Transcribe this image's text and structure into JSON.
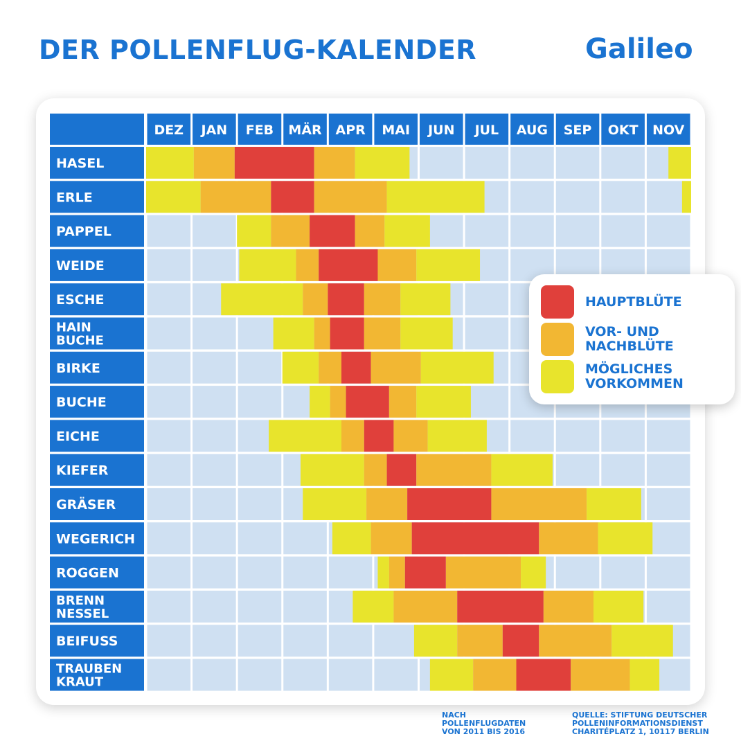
{
  "header": {
    "title": "DER POLLENFLUG-KALENDER",
    "logo": "Galileo"
  },
  "colors": {
    "header_blue": "#1a73d1",
    "grid_bg": "#cfe0f2",
    "hauptbluete": "#e0403b",
    "vor_nachbluete": "#f2b733",
    "moegliches": "#e8e42c"
  },
  "legend": {
    "items": [
      {
        "label": "HAUPTBLÜTE",
        "color": "#e0403b"
      },
      {
        "label": "VOR- UND\nNACHBLÜTE",
        "color": "#f2b733"
      },
      {
        "label": "MÖGLICHES\nVORKOMMEN",
        "color": "#e8e42c"
      }
    ]
  },
  "footer": {
    "left_note": "NACH\nPOLLENFLUGDATEN\nVON 2011 BIS 2016",
    "source": "QUELLE: STIFTUNG DEUTSCHER\nPOLLENINFORMATIONSDIENST\nCHARITÉPLATZ 1, 10117 BERLIN"
  },
  "chart_data": {
    "type": "table",
    "title": "DER POLLENFLUG-KALENDER",
    "months": [
      "DEZ",
      "JAN",
      "FEB",
      "MÄR",
      "APR",
      "MAI",
      "JUN",
      "JUL",
      "AUG",
      "SEP",
      "OKT",
      "NOV"
    ],
    "x_unit": "months from start of December",
    "categories_legend": [
      "HAUPTBLÜTE",
      "VOR- UND NACHBLÜTE",
      "MÖGLICHES VORKOMMEN"
    ],
    "plants": [
      {
        "name": "HASEL",
        "segments": [
          [
            0,
            1.05,
            "M"
          ],
          [
            1.05,
            1.95,
            "V"
          ],
          [
            1.95,
            3.7,
            "H"
          ],
          [
            3.7,
            4.6,
            "V"
          ],
          [
            4.6,
            5.8,
            "M"
          ],
          [
            11.5,
            12,
            "M"
          ]
        ]
      },
      {
        "name": "ERLE",
        "segments": [
          [
            0,
            1.2,
            "M"
          ],
          [
            1.2,
            2.75,
            "V"
          ],
          [
            2.75,
            3.7,
            "H"
          ],
          [
            3.7,
            5.3,
            "V"
          ],
          [
            5.3,
            7.45,
            "M"
          ],
          [
            11.8,
            12,
            "M"
          ]
        ]
      },
      {
        "name": "PAPPEL",
        "segments": [
          [
            2.0,
            2.75,
            "M"
          ],
          [
            2.75,
            3.6,
            "V"
          ],
          [
            3.6,
            4.6,
            "H"
          ],
          [
            4.6,
            5.25,
            "V"
          ],
          [
            5.25,
            6.25,
            "M"
          ]
        ]
      },
      {
        "name": "WEIDE",
        "segments": [
          [
            2.05,
            3.3,
            "M"
          ],
          [
            3.3,
            3.8,
            "V"
          ],
          [
            3.8,
            5.1,
            "H"
          ],
          [
            5.1,
            5.95,
            "V"
          ],
          [
            5.95,
            7.35,
            "M"
          ]
        ]
      },
      {
        "name": "ESCHE",
        "segments": [
          [
            1.65,
            3.45,
            "M"
          ],
          [
            3.45,
            4.0,
            "V"
          ],
          [
            4.0,
            4.8,
            "H"
          ],
          [
            4.8,
            5.6,
            "V"
          ],
          [
            5.6,
            6.7,
            "M"
          ]
        ]
      },
      {
        "name": "HAIN\nBUCHE",
        "segments": [
          [
            2.8,
            3.7,
            "M"
          ],
          [
            3.7,
            4.05,
            "V"
          ],
          [
            4.05,
            4.8,
            "H"
          ],
          [
            4.8,
            5.6,
            "V"
          ],
          [
            5.6,
            6.75,
            "M"
          ]
        ]
      },
      {
        "name": "BIRKE",
        "segments": [
          [
            3.0,
            3.8,
            "M"
          ],
          [
            3.8,
            4.3,
            "V"
          ],
          [
            4.3,
            4.95,
            "H"
          ],
          [
            4.95,
            6.05,
            "V"
          ],
          [
            6.05,
            7.65,
            "M"
          ]
        ]
      },
      {
        "name": "BUCHE",
        "segments": [
          [
            3.6,
            4.05,
            "M"
          ],
          [
            4.05,
            4.4,
            "V"
          ],
          [
            4.4,
            5.35,
            "H"
          ],
          [
            5.35,
            5.95,
            "V"
          ],
          [
            5.95,
            7.15,
            "M"
          ]
        ]
      },
      {
        "name": "EICHE",
        "segments": [
          [
            2.7,
            4.3,
            "M"
          ],
          [
            4.3,
            4.8,
            "V"
          ],
          [
            4.8,
            5.45,
            "H"
          ],
          [
            5.45,
            6.2,
            "V"
          ],
          [
            6.2,
            7.5,
            "M"
          ]
        ]
      },
      {
        "name": "KIEFER",
        "segments": [
          [
            3.4,
            4.8,
            "M"
          ],
          [
            4.8,
            5.3,
            "V"
          ],
          [
            5.3,
            5.95,
            "H"
          ],
          [
            5.95,
            7.6,
            "V"
          ],
          [
            7.6,
            8.95,
            "M"
          ]
        ]
      },
      {
        "name": "GRÄSER",
        "segments": [
          [
            3.45,
            4.85,
            "M"
          ],
          [
            4.85,
            5.75,
            "V"
          ],
          [
            5.75,
            7.6,
            "H"
          ],
          [
            7.6,
            9.7,
            "V"
          ],
          [
            9.7,
            10.9,
            "M"
          ]
        ]
      },
      {
        "name": "WEGERICH",
        "segments": [
          [
            4.1,
            4.95,
            "M"
          ],
          [
            4.95,
            5.85,
            "V"
          ],
          [
            5.85,
            8.65,
            "H"
          ],
          [
            8.65,
            9.95,
            "V"
          ],
          [
            9.95,
            11.15,
            "M"
          ]
        ]
      },
      {
        "name": "ROGGEN",
        "segments": [
          [
            5.1,
            5.35,
            "M"
          ],
          [
            5.35,
            5.7,
            "V"
          ],
          [
            5.7,
            6.6,
            "H"
          ],
          [
            6.6,
            8.25,
            "V"
          ],
          [
            8.25,
            8.8,
            "M"
          ]
        ]
      },
      {
        "name": "BRENN\nNESSEL",
        "segments": [
          [
            4.55,
            5.45,
            "M"
          ],
          [
            5.45,
            6.85,
            "V"
          ],
          [
            6.85,
            8.75,
            "H"
          ],
          [
            8.75,
            9.85,
            "V"
          ],
          [
            9.85,
            10.95,
            "M"
          ]
        ]
      },
      {
        "name": "BEIFUSS",
        "segments": [
          [
            5.9,
            6.85,
            "M"
          ],
          [
            6.85,
            7.85,
            "V"
          ],
          [
            7.85,
            8.65,
            "H"
          ],
          [
            8.65,
            10.25,
            "V"
          ],
          [
            10.25,
            11.6,
            "M"
          ]
        ]
      },
      {
        "name": "TRAUBEN\nKRAUT",
        "segments": [
          [
            6.25,
            7.2,
            "M"
          ],
          [
            7.2,
            8.15,
            "V"
          ],
          [
            8.15,
            9.35,
            "H"
          ],
          [
            9.35,
            10.65,
            "V"
          ],
          [
            10.65,
            11.3,
            "M"
          ]
        ]
      }
    ]
  }
}
